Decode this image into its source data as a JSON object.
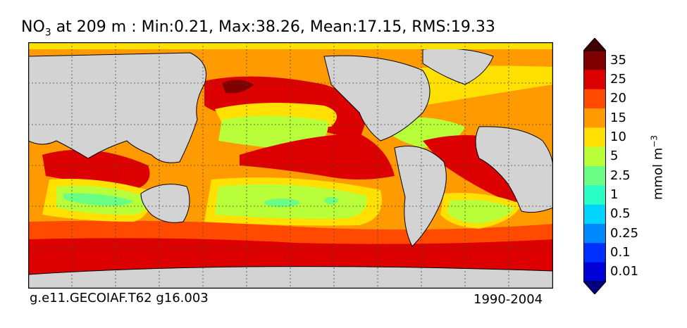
{
  "title": {
    "species": "NO",
    "species_sub": "3",
    "rest": " at 209 m : Min:0.21, Max:38.26, Mean:17.15, RMS:19.33"
  },
  "footer": {
    "case": "g.e11.GECOIAF.T62 g16.003",
    "years": "1990-2004"
  },
  "colorbar": {
    "units_main": "mmol m",
    "units_sup": "−3",
    "levels": [
      {
        "label": "35",
        "color": "#7f0000"
      },
      {
        "label": "25",
        "color": "#dd0000"
      },
      {
        "label": "20",
        "color": "#ff4a00"
      },
      {
        "label": "15",
        "color": "#ff9a00"
      },
      {
        "label": "10",
        "color": "#ffe000"
      },
      {
        "label": "5",
        "color": "#b8ff3a"
      },
      {
        "label": "2.5",
        "color": "#6aff84"
      },
      {
        "label": "1",
        "color": "#2affc8"
      },
      {
        "label": "0.5",
        "color": "#00d4ff"
      },
      {
        "label": "0.25",
        "color": "#0088ff"
      },
      {
        "label": "0.1",
        "color": "#0030ff"
      },
      {
        "label": "0.01",
        "color": "#0000d8"
      }
    ],
    "under_color": "#000080",
    "over_color": "#400000"
  },
  "map_colors": {
    "land": "#d3d3d3",
    "ice": "#ffffff"
  }
}
